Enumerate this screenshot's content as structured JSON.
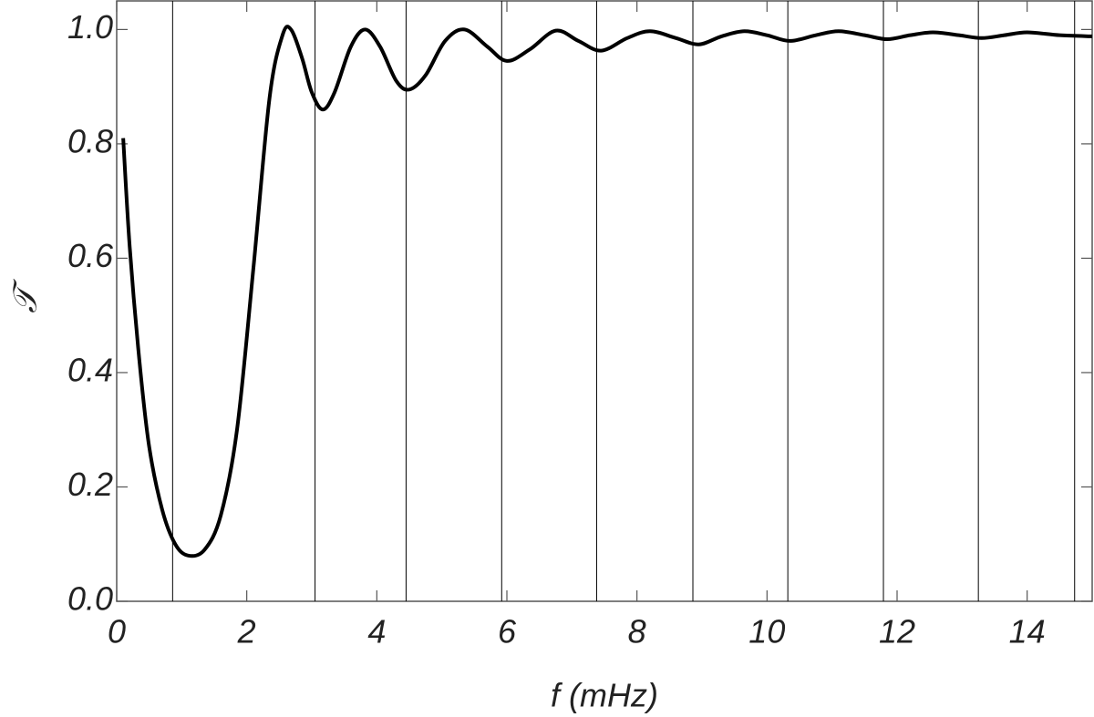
{
  "chart_data": {
    "type": "line",
    "xlabel": "f (mHz)",
    "ylabel": "𝒯",
    "x": [
      0.1,
      0.2,
      0.35,
      0.5,
      0.7,
      0.9,
      1.1,
      1.35,
      1.6,
      1.85,
      2.1,
      2.35,
      2.55,
      2.68,
      2.85,
      3.0,
      3.17,
      3.35,
      3.6,
      3.82,
      4.05,
      4.3,
      4.5,
      4.75,
      5.05,
      5.35,
      5.7,
      6.0,
      6.35,
      6.75,
      7.1,
      7.45,
      7.85,
      8.2,
      8.6,
      8.95,
      9.3,
      9.65,
      10.0,
      10.35,
      10.75,
      11.1,
      11.5,
      11.85,
      12.2,
      12.55,
      12.95,
      13.3,
      13.65,
      14.0,
      14.5,
      15.0
    ],
    "series": [
      {
        "color": "#000000",
        "values": [
          0.81,
          0.62,
          0.42,
          0.27,
          0.16,
          0.1,
          0.08,
          0.09,
          0.15,
          0.3,
          0.58,
          0.88,
          0.99,
          1.0,
          0.95,
          0.89,
          0.86,
          0.89,
          0.97,
          1.0,
          0.97,
          0.91,
          0.895,
          0.92,
          0.98,
          1.0,
          0.97,
          0.945,
          0.965,
          0.998,
          0.98,
          0.963,
          0.985,
          0.997,
          0.985,
          0.974,
          0.988,
          0.997,
          0.99,
          0.98,
          0.99,
          0.997,
          0.99,
          0.983,
          0.99,
          0.995,
          0.99,
          0.985,
          0.99,
          0.995,
          0.99,
          0.988
        ]
      }
    ],
    "vlines": [
      0.86,
      3.05,
      4.45,
      5.92,
      7.38,
      8.86,
      10.32,
      11.79,
      13.25,
      14.73
    ],
    "xlim": [
      0,
      15
    ],
    "ylim": [
      0,
      1.05
    ],
    "xticks": [
      0,
      2,
      4,
      6,
      8,
      10,
      12,
      14
    ],
    "yticks": [
      {
        "value": 0,
        "label": "0.0"
      },
      0.2,
      0.4,
      0.6,
      0.8,
      {
        "value": 1,
        "label": "1.0"
      }
    ]
  }
}
